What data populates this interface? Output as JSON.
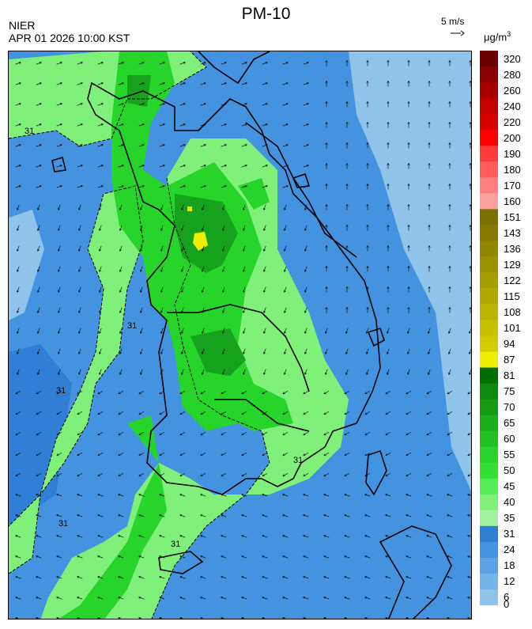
{
  "header": {
    "title": "PM-10",
    "org": "NIER",
    "timestamp": "APR 01 2026 10:00 KST",
    "wind_scale_label": "5 m/s",
    "unit_main": "μg/m",
    "unit_sup": "3"
  },
  "map": {
    "contour_label": "31",
    "colors": {
      "sea_lightblue": "#8ec3ea",
      "blue": "#4393e0",
      "midblue": "#2f7fd6",
      "lightgreen": "#7ff07a",
      "green": "#27d42a",
      "darkgreen": "#16a21c",
      "yellow": "#eeee00"
    }
  },
  "colorbar": {
    "ticks": [
      "320",
      "280",
      "260",
      "240",
      "220",
      "200",
      "190",
      "180",
      "170",
      "160",
      "151",
      "143",
      "136",
      "129",
      "122",
      "115",
      "108",
      "101",
      "94",
      "87",
      "81",
      "75",
      "70",
      "65",
      "60",
      "55",
      "50",
      "45",
      "40",
      "35",
      "31",
      "24",
      "18",
      "12",
      "6",
      "0"
    ],
    "colors": [
      "#6b0000",
      "#8a0000",
      "#a80000",
      "#c20000",
      "#d80000",
      "#ff0000",
      "#ff3a3a",
      "#ff5c5c",
      "#ff7e7e",
      "#ffa0a0",
      "#7a7000",
      "#847a00",
      "#8f8800",
      "#9a9300",
      "#a49e00",
      "#b0aa00",
      "#bbb500",
      "#c6c000",
      "#d0cc00",
      "#eeee00",
      "#006e00",
      "#0c8a0c",
      "#159c15",
      "#1bae1b",
      "#22c022",
      "#2ad32a",
      "#33e133",
      "#56ee56",
      "#7ff07a",
      "#a0f2a0",
      "#2f7fd6",
      "#4393e0",
      "#5aa3e6",
      "#74b4ea",
      "#8ec3ea"
    ]
  }
}
